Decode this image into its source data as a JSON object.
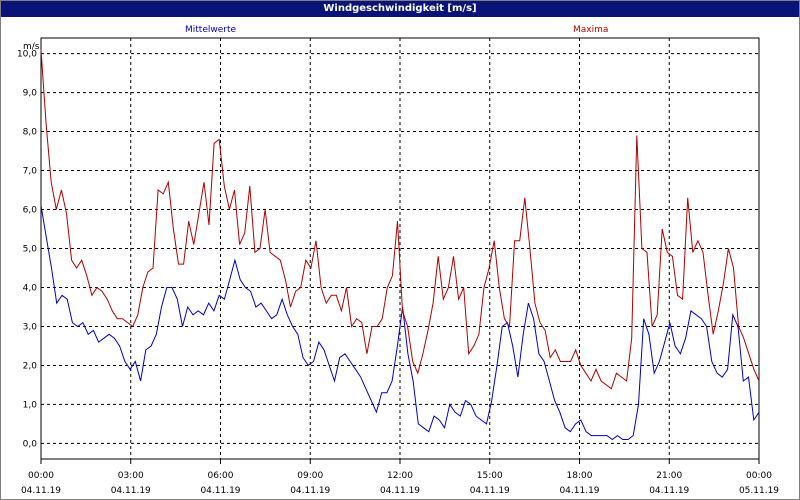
{
  "window": {
    "title": "Windgeschwindigkeit [m/s]"
  },
  "colors": {
    "mittelwerte": "#0000cc",
    "maxima": "#b00000",
    "title_bg": "#0a1478",
    "grid": "#000000"
  },
  "chart_data": {
    "type": "line",
    "title": "Windgeschwindigkeit [m/s]",
    "ylabel": "m/s",
    "xlabel": "",
    "ylim": [
      -0.4,
      10.4
    ],
    "grid": true,
    "legend_placement": "top",
    "x_hours_range": [
      0,
      24
    ],
    "y_ticks": [
      "0,0",
      "1,0",
      "2,0",
      "3,0",
      "4,0",
      "5,0",
      "6,0",
      "7,0",
      "8,0",
      "9,0",
      "10,0"
    ],
    "x_ticks": [
      {
        "time": "00:00",
        "date": "04.11.19"
      },
      {
        "time": "03:00",
        "date": "04.11.19"
      },
      {
        "time": "06:00",
        "date": "04.11.19"
      },
      {
        "time": "09:00",
        "date": "04.11.19"
      },
      {
        "time": "12:00",
        "date": "04.11.19"
      },
      {
        "time": "15:00",
        "date": "04.11.19"
      },
      {
        "time": "18:00",
        "date": "04.11.19"
      },
      {
        "time": "21:00",
        "date": "04.11.19"
      },
      {
        "time": "00:00",
        "date": "05.11.19"
      }
    ],
    "series": [
      {
        "name": "Mittelwerte",
        "color": "#0000cc",
        "values": [
          6.1,
          5.3,
          4.5,
          3.6,
          3.8,
          3.7,
          3.1,
          3.0,
          3.1,
          2.8,
          2.9,
          2.6,
          2.7,
          2.8,
          2.7,
          2.5,
          2.1,
          1.9,
          2.1,
          1.6,
          2.4,
          2.5,
          2.8,
          3.5,
          4.0,
          4.0,
          3.7,
          3.0,
          3.5,
          3.3,
          3.4,
          3.3,
          3.6,
          3.4,
          3.8,
          3.7,
          4.2,
          4.7,
          4.2,
          4.0,
          3.9,
          3.5,
          3.6,
          3.4,
          3.2,
          3.3,
          3.7,
          3.3,
          3.0,
          2.8,
          2.2,
          2.0,
          2.1,
          2.6,
          2.4,
          2.0,
          1.6,
          2.2,
          2.3,
          2.1,
          1.9,
          1.7,
          1.4,
          1.1,
          0.8,
          1.3,
          1.3,
          1.6,
          2.5,
          3.5,
          2.3,
          1.6,
          0.5,
          0.4,
          0.3,
          0.7,
          0.6,
          0.4,
          1.0,
          0.8,
          0.7,
          1.1,
          1.0,
          0.7,
          0.6,
          0.5,
          1.1,
          2.0,
          3.0,
          3.1,
          2.5,
          1.7,
          2.8,
          3.6,
          3.2,
          2.3,
          2.1,
          1.6,
          1.1,
          0.8,
          0.4,
          0.3,
          0.5,
          0.6,
          0.3,
          0.2,
          0.2,
          0.2,
          0.2,
          0.1,
          0.2,
          0.1,
          0.1,
          0.2,
          1.0,
          3.2,
          2.8,
          1.8,
          2.1,
          2.6,
          3.1,
          2.5,
          2.3,
          2.7,
          3.4,
          3.3,
          3.2,
          3.0,
          2.1,
          1.8,
          1.7,
          1.9,
          3.3,
          3.0,
          1.6,
          1.7,
          0.6,
          0.8
        ]
      },
      {
        "name": "Maxima",
        "color": "#b00000",
        "values": [
          10.1,
          8.2,
          6.7,
          6.0,
          6.5,
          5.9,
          4.7,
          4.5,
          4.7,
          4.3,
          3.8,
          4.0,
          3.9,
          3.7,
          3.4,
          3.2,
          3.2,
          3.1,
          3.0,
          3.3,
          4.0,
          4.4,
          4.5,
          6.5,
          6.4,
          6.7,
          5.5,
          4.6,
          4.6,
          5.7,
          5.1,
          5.9,
          6.7,
          5.6,
          7.7,
          7.8,
          6.6,
          6.0,
          6.5,
          5.1,
          5.4,
          6.6,
          4.9,
          5.0,
          6.0,
          4.9,
          4.8,
          4.7,
          4.2,
          3.5,
          3.9,
          4.0,
          4.7,
          4.5,
          5.2,
          4.0,
          3.6,
          3.8,
          3.8,
          3.4,
          4.0,
          3.0,
          3.2,
          3.1,
          2.3,
          3.0,
          3.0,
          3.2,
          4.0,
          4.3,
          5.7,
          3.4,
          3.0,
          2.1,
          1.8,
          2.3,
          2.9,
          3.6,
          4.8,
          3.7,
          4.0,
          4.8,
          3.7,
          4.0,
          2.3,
          2.5,
          2.8,
          4.0,
          4.5,
          5.2,
          4.0,
          3.2,
          3.0,
          5.2,
          5.2,
          6.3,
          5.0,
          3.6,
          3.1,
          2.9,
          2.2,
          2.4,
          2.1,
          2.1,
          2.1,
          2.4,
          2.0,
          1.8,
          1.6,
          1.9,
          1.6,
          1.5,
          1.4,
          1.8,
          1.7,
          1.6,
          2.7,
          7.9,
          5.0,
          4.9,
          3.0,
          3.3,
          5.5,
          4.9,
          4.8,
          3.8,
          3.7,
          6.3,
          4.9,
          5.2,
          4.9,
          3.8,
          2.8,
          3.4,
          4.1,
          5.0,
          4.5,
          3.0,
          2.7,
          2.3,
          1.9,
          1.6
        ]
      }
    ]
  }
}
